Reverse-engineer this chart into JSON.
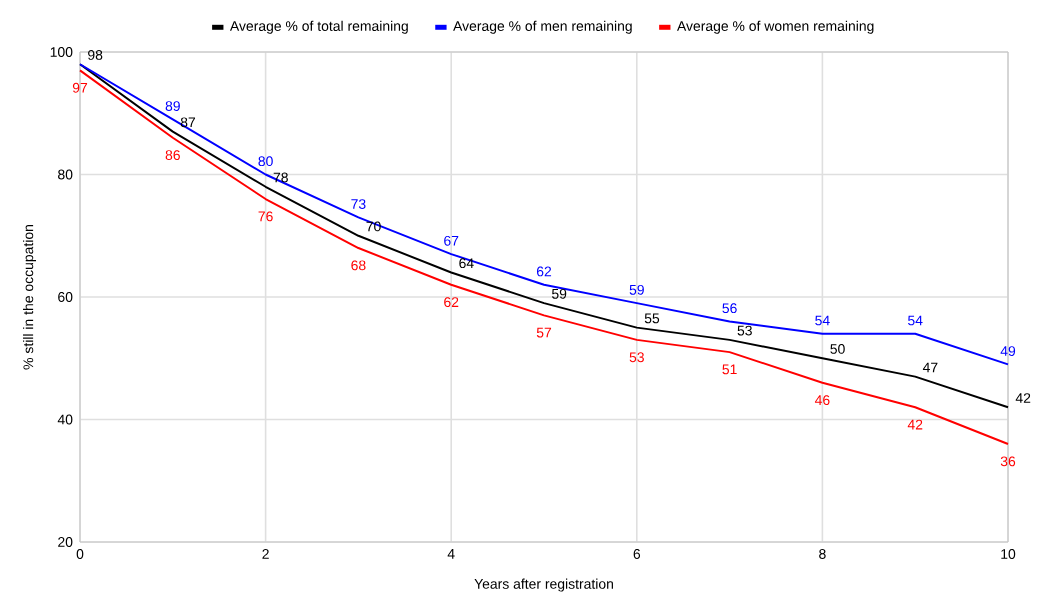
{
  "chart_data": {
    "type": "line",
    "xlabel": "Years after registration",
    "ylabel": "% still in the occupation",
    "x": [
      0,
      1,
      2,
      3,
      4,
      5,
      6,
      7,
      8,
      9,
      10
    ],
    "series": [
      {
        "name": "Average % of total remaining",
        "color": "#000000",
        "values": [
          98,
          87,
          78,
          70,
          64,
          59,
          55,
          53,
          50,
          47,
          42
        ],
        "value_labels": [
          "98",
          "87",
          "78",
          "70",
          "64",
          "59",
          "55",
          "53",
          "50",
          "47",
          "42"
        ]
      },
      {
        "name": "Average % of men remaining",
        "color": "#0000ff",
        "values": [
          98,
          89,
          80,
          73,
          67,
          62,
          59,
          56,
          54,
          54,
          49
        ],
        "value_labels": [
          null,
          "89",
          "80",
          "73",
          "67",
          "62",
          "59",
          "56",
          "54",
          "54",
          "49"
        ]
      },
      {
        "name": "Average % of women remaining",
        "color": "#ff0000",
        "values": [
          97,
          86,
          76,
          68,
          62,
          57,
          53,
          51,
          46,
          42,
          36
        ],
        "value_labels": [
          "97",
          "86",
          "76",
          "68",
          "62",
          "57",
          "53",
          "51",
          "46",
          "42",
          "36"
        ]
      }
    ],
    "xlim": [
      0,
      10
    ],
    "xticks": [
      0,
      2,
      4,
      6,
      8,
      10
    ],
    "ylim": [
      20,
      100
    ],
    "yticks": [
      20,
      40,
      60,
      80,
      100
    ],
    "grid": true,
    "legend": "top",
    "marker": "none",
    "line_style": "solid"
  }
}
